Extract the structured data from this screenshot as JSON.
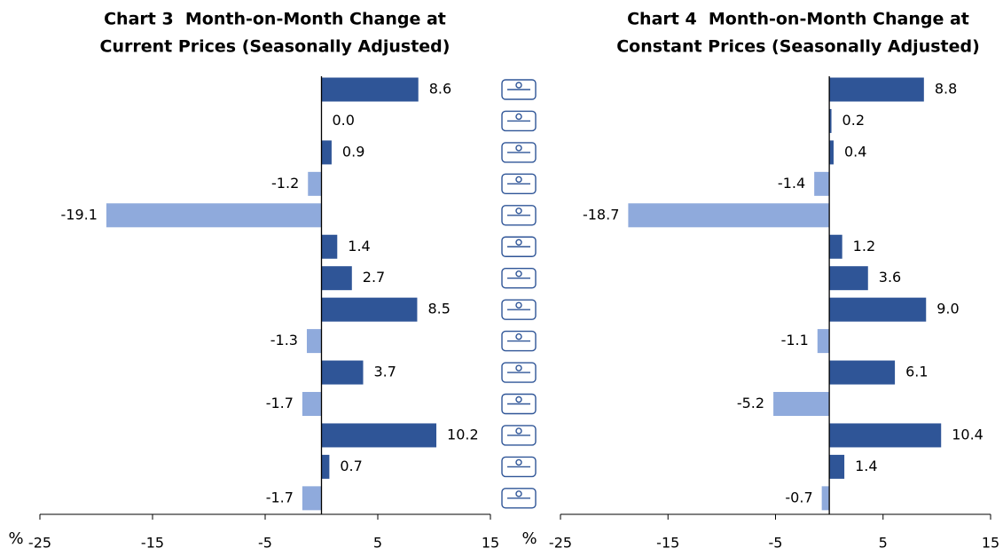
{
  "chart_data": [
    {
      "type": "bar",
      "orientation": "horizontal",
      "title": [
        "Chart 3  Month-on-Month Change at",
        "Current Prices (Seasonally Adjusted)"
      ],
      "xlabel": "%",
      "values": [
        8.6,
        0.0,
        0.9,
        -1.2,
        -19.1,
        1.4,
        2.7,
        8.5,
        -1.3,
        3.7,
        -1.7,
        10.2,
        0.7,
        -1.7
      ],
      "value_labels": [
        "8.6",
        "0.0",
        "0.9",
        "-1.2",
        "-19.1",
        "1.4",
        "2.7",
        "8.5",
        "-1.3",
        "3.7",
        "-1.7",
        "10.2",
        "0.7",
        "-1.7"
      ],
      "colors": {
        "positive": "#2f5597",
        "negative": "#8faadc"
      },
      "xlim": [
        -25,
        15
      ],
      "xticks": [
        -25,
        -15,
        -5,
        5,
        15
      ]
    },
    {
      "type": "bar",
      "orientation": "horizontal",
      "title": [
        "Chart 4  Month-on-Month Change at",
        "Constant Prices (Seasonally Adjusted)"
      ],
      "xlabel": "%",
      "values": [
        8.8,
        0.2,
        0.4,
        -1.4,
        -18.7,
        1.2,
        3.6,
        9.0,
        -1.1,
        6.1,
        -5.2,
        10.4,
        1.4,
        -0.7
      ],
      "value_labels": [
        "8.8",
        "0.2",
        "0.4",
        "-1.4",
        "-18.7",
        "1.2",
        "3.6",
        "9.0",
        "-1.1",
        "6.1",
        "-5.2",
        "10.4",
        "1.4",
        "-0.7"
      ],
      "colors": {
        "positive": "#2f5597",
        "negative": "#8faadc"
      },
      "xlim": [
        -25,
        15
      ],
      "xticks": [
        -25,
        -15,
        -5,
        5,
        15
      ]
    }
  ]
}
